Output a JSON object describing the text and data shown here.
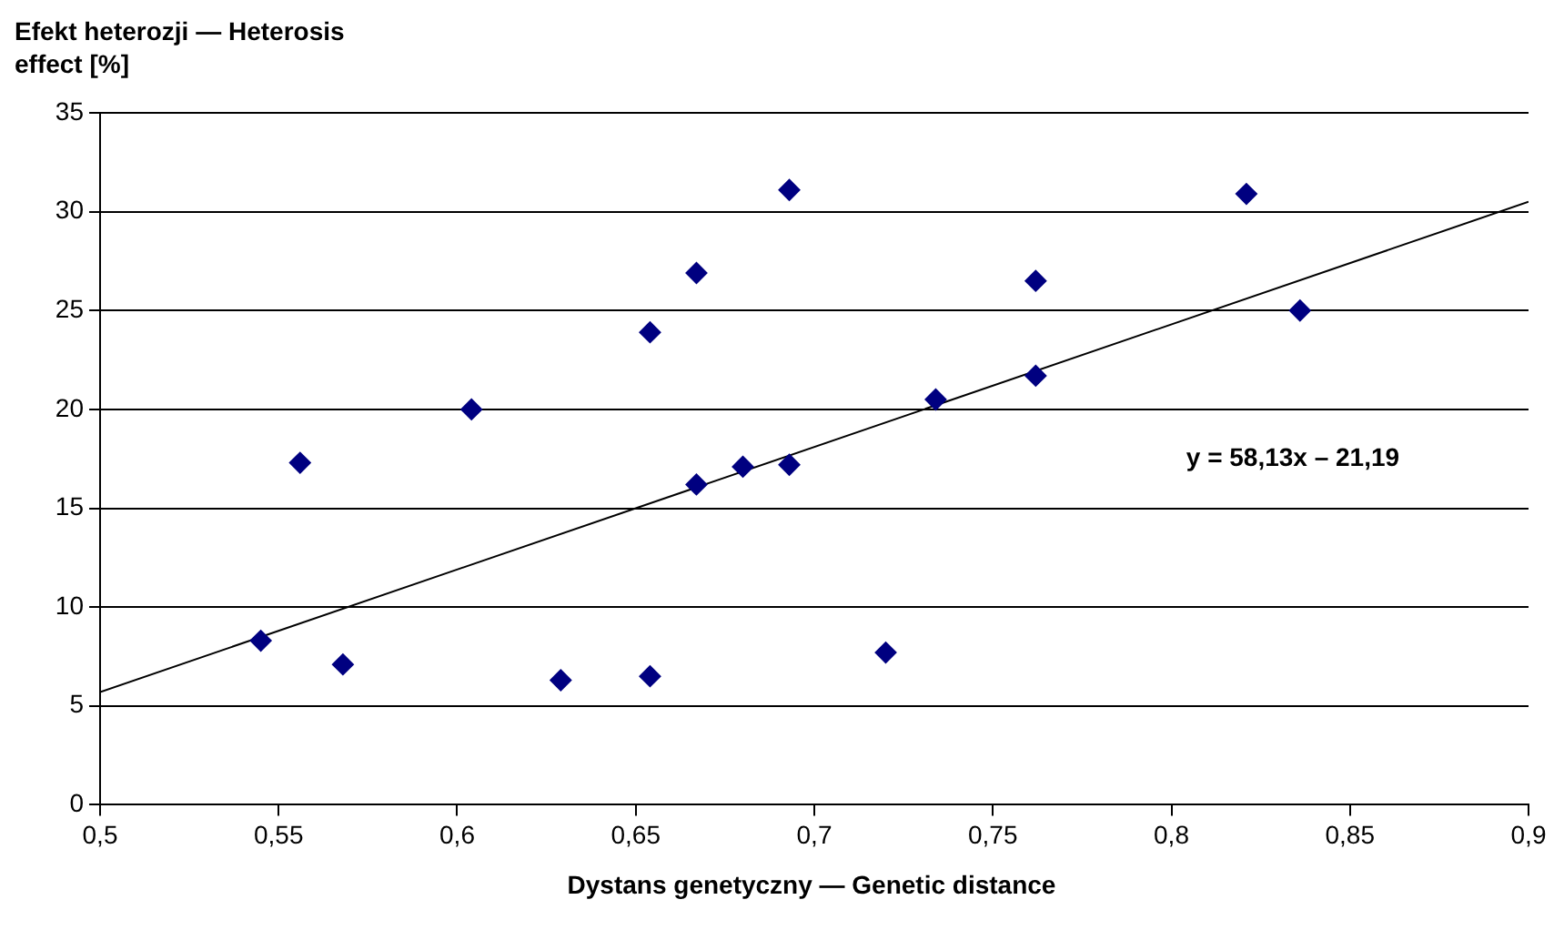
{
  "chart_data": {
    "type": "scatter",
    "xlabel": "Dystans genetyczny — Genetic distance",
    "ylabel": "Efekt heterozji — Heterosis effect [%]",
    "xlim": [
      0.5,
      0.9
    ],
    "xticks": [
      {
        "value": 0.5,
        "label": "0,5"
      },
      {
        "value": 0.55,
        "label": "0,55"
      },
      {
        "value": 0.6,
        "label": "0,6"
      },
      {
        "value": 0.65,
        "label": "0,65"
      },
      {
        "value": 0.7,
        "label": "0,7"
      },
      {
        "value": 0.75,
        "label": "0,75"
      },
      {
        "value": 0.8,
        "label": "0,8"
      },
      {
        "value": 0.85,
        "label": "0,85"
      },
      {
        "value": 0.9,
        "label": "0,9"
      }
    ],
    "ylim": [
      0,
      35
    ],
    "yticks": [
      0,
      5,
      10,
      15,
      20,
      25,
      30,
      35
    ],
    "grid": "y",
    "legend": false,
    "marker": "diamond",
    "series": [
      {
        "color": "#000080",
        "x": [
          0.545,
          0.556,
          0.568,
          0.604,
          0.629,
          0.654,
          0.654,
          0.667,
          0.667,
          0.68,
          0.693,
          0.693,
          0.72,
          0.734,
          0.762,
          0.762,
          0.821,
          0.836
        ],
        "values": [
          8.3,
          17.3,
          7.1,
          20.0,
          6.3,
          23.9,
          6.5,
          26.9,
          16.2,
          17.1,
          31.1,
          17.2,
          7.7,
          20.5,
          26.5,
          21.7,
          30.9,
          25.0
        ]
      },
      {
        "type": "line",
        "marker": "none",
        "color": "#000000",
        "x": [
          0.5,
          0.9
        ],
        "values": [
          5.7,
          30.5
        ]
      }
    ],
    "annotations": [
      "y = 58,13x – 21,19"
    ]
  }
}
